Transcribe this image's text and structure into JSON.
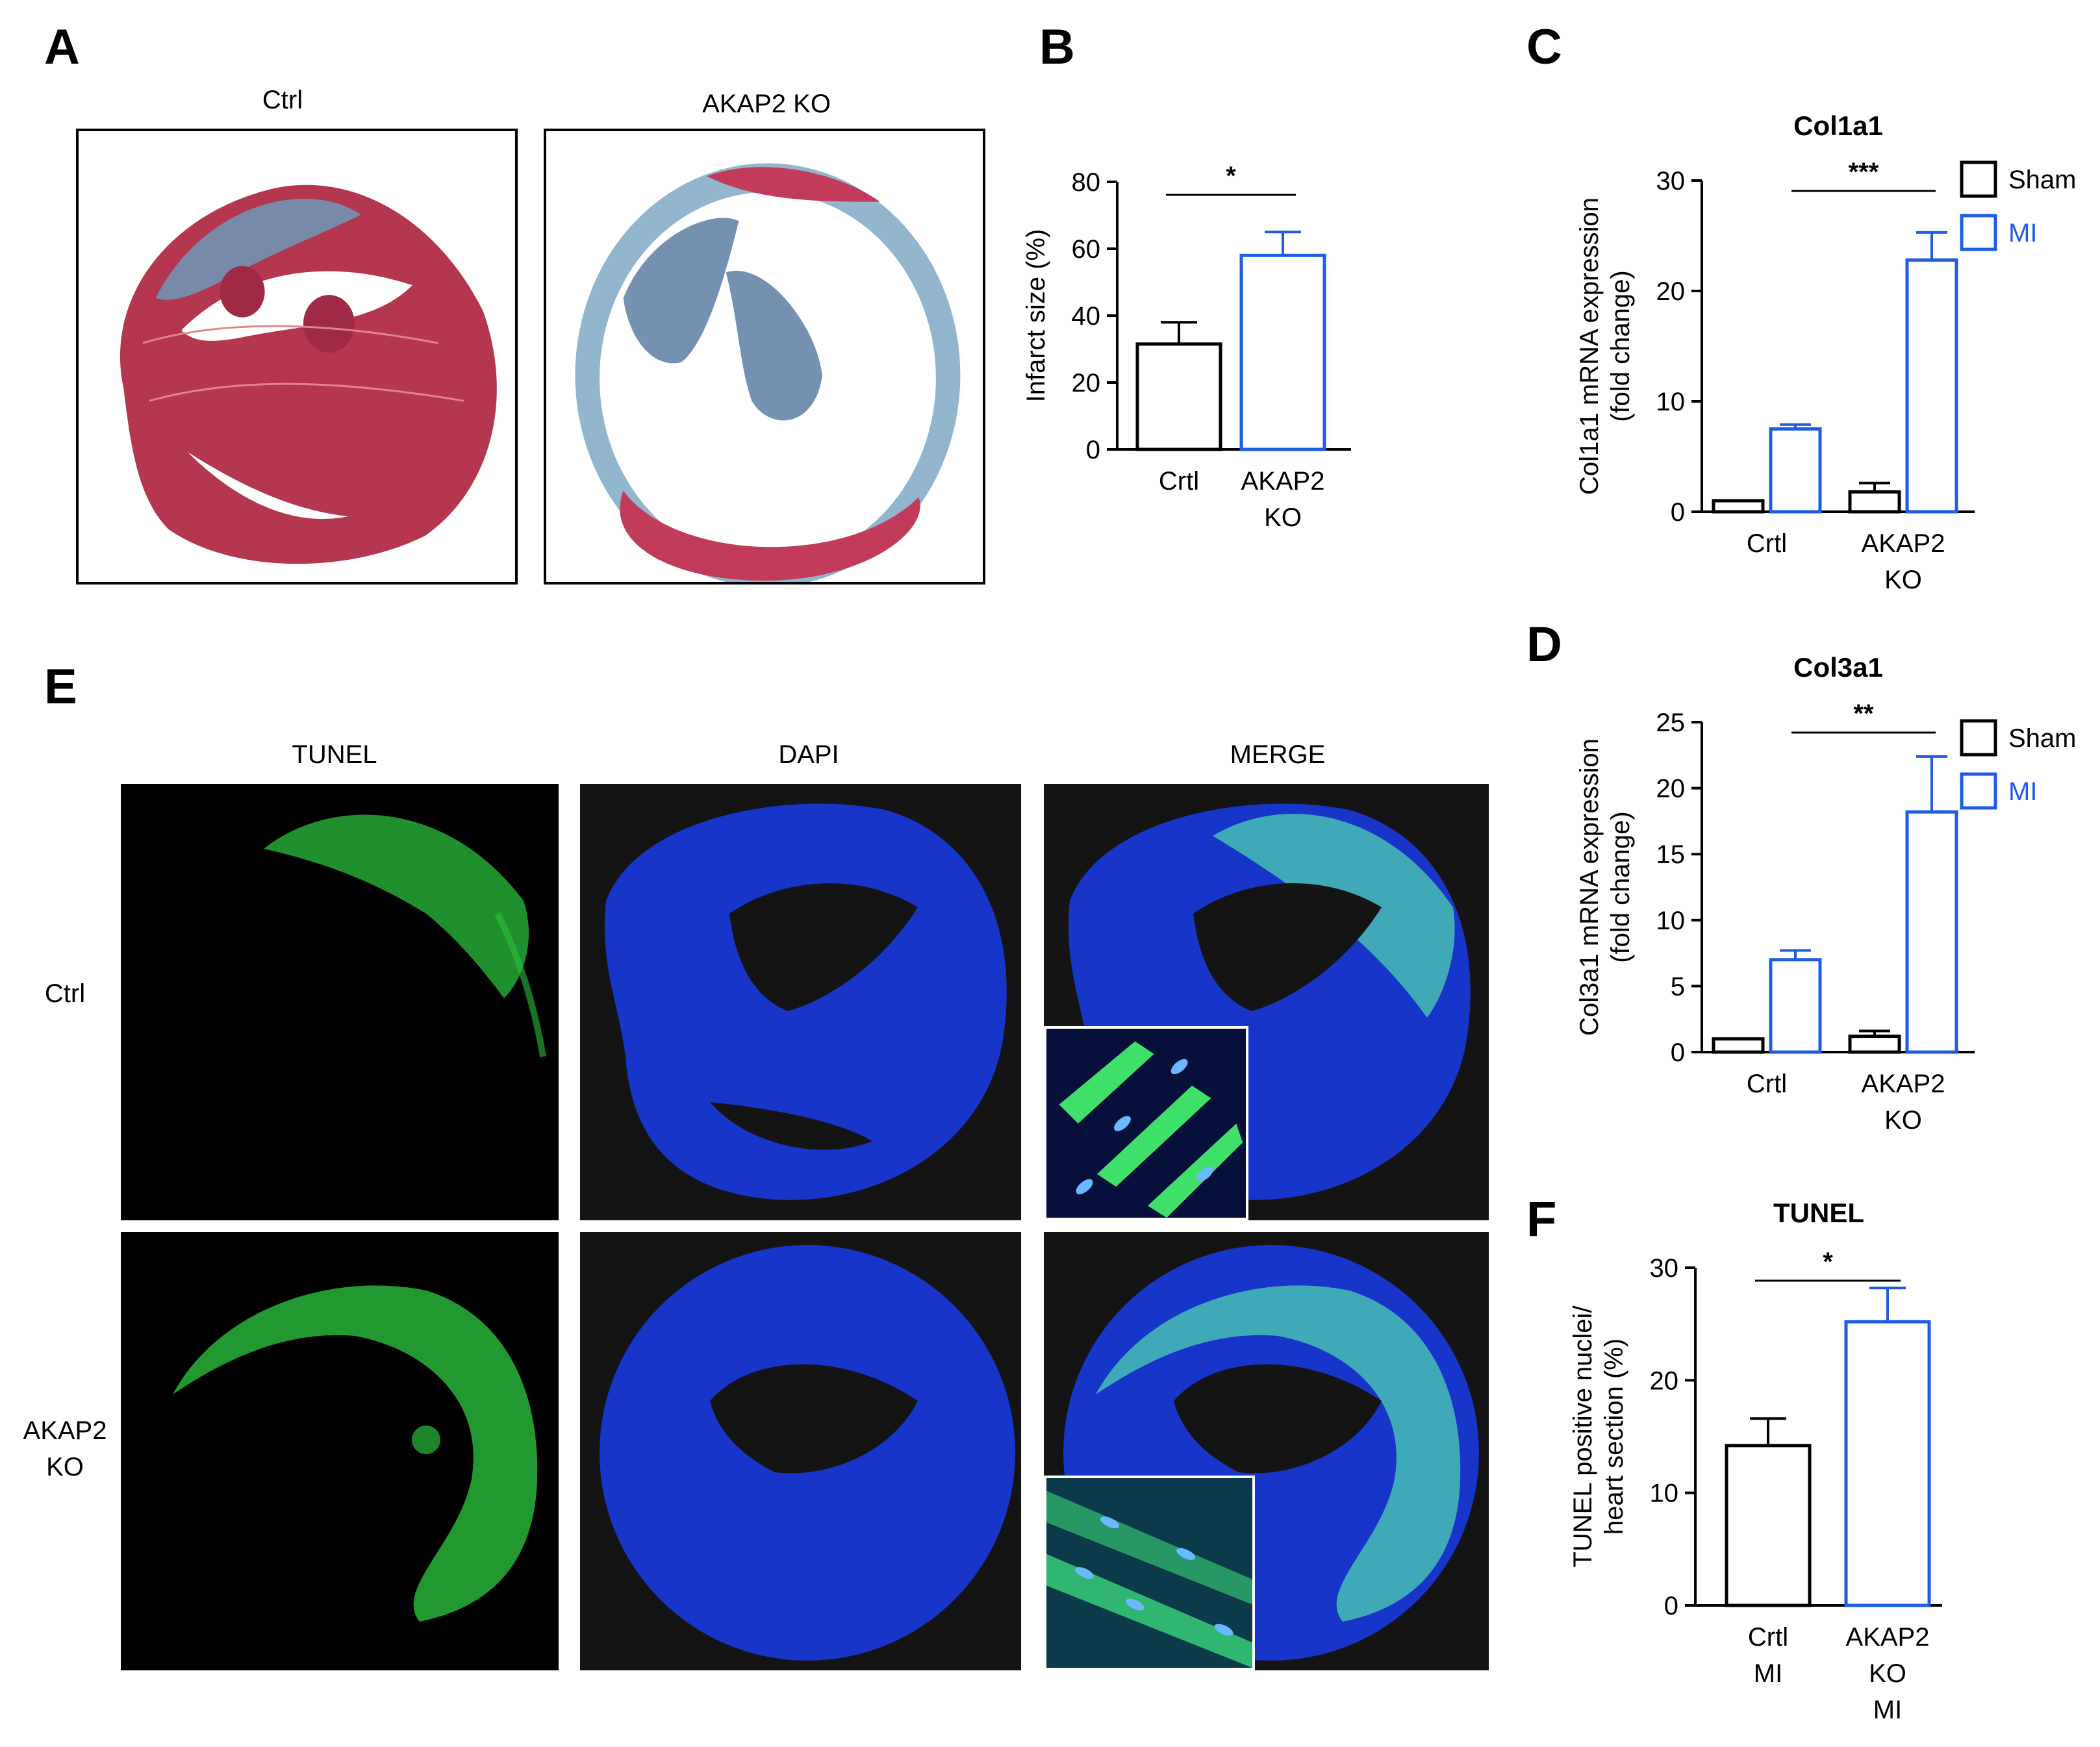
{
  "panels": {
    "A": "A",
    "B": "B",
    "C": "C",
    "D": "D",
    "E": "E",
    "F": "F"
  },
  "histology": {
    "ctrl_label": "Ctrl",
    "ko_label": "AKAP2 KO"
  },
  "fluorescence": {
    "columns": [
      "TUNEL",
      "DAPI",
      "MERGE"
    ],
    "rows": [
      "Ctrl",
      "AKAP2 KO"
    ],
    "colors": {
      "tunel": "#38d64a",
      "dapi": "#1a3ed8",
      "background": "#000000"
    }
  },
  "colors": {
    "ctrl": "#000000",
    "ko": "#1f5ce0",
    "mi": "#1f5ce0",
    "sham": "#000000"
  },
  "chart_data": [
    {
      "id": "B",
      "type": "bar",
      "title": "",
      "ylabel": "Infarct size (%)",
      "ylim": [
        0,
        80
      ],
      "yticks": [
        0,
        20,
        40,
        60,
        80
      ],
      "categories": [
        "Crtl",
        "AKAP2 KO"
      ],
      "category_lines": [
        [
          "Crtl"
        ],
        [
          "AKAP2",
          "KO"
        ]
      ],
      "values": [
        31.5,
        58
      ],
      "errors": [
        6.5,
        7
      ],
      "colors": [
        "#000000",
        "#1f5ce0"
      ],
      "significance": "*"
    },
    {
      "id": "C",
      "type": "bar",
      "title": "Col1a1",
      "ylabel": "Col1a1 mRNA expression (fold change)",
      "ylabel_lines": [
        "Col1a1 mRNA expression",
        "(fold change)"
      ],
      "ylim": [
        0,
        30
      ],
      "yticks": [
        0,
        10,
        20,
        30
      ],
      "categories": [
        "Crtl",
        "AKAP2 KO"
      ],
      "category_lines": [
        [
          "Crtl"
        ],
        [
          "AKAP2",
          "KO"
        ]
      ],
      "series": [
        {
          "name": "Sham",
          "values": [
            1,
            1.8
          ],
          "errors": [
            0,
            0.8
          ],
          "color": "#000000"
        },
        {
          "name": "MI",
          "values": [
            7.5,
            22.8
          ],
          "errors": [
            0.4,
            2.5
          ],
          "color": "#1f5ce0"
        }
      ],
      "significance": "***",
      "legend": "top-right"
    },
    {
      "id": "D",
      "type": "bar",
      "title": "Col3a1",
      "ylabel": "Col3a1 mRNA expression (fold change)",
      "ylabel_lines": [
        "Col3a1 mRNA expression",
        "(fold change)"
      ],
      "ylim": [
        0,
        25
      ],
      "yticks": [
        0,
        5,
        10,
        15,
        20,
        25
      ],
      "categories": [
        "Crtl",
        "AKAP2 KO"
      ],
      "category_lines": [
        [
          "Crtl"
        ],
        [
          "AKAP2",
          "KO"
        ]
      ],
      "series": [
        {
          "name": "Sham",
          "values": [
            1,
            1.2
          ],
          "errors": [
            0,
            0.4
          ],
          "color": "#000000"
        },
        {
          "name": "MI",
          "values": [
            7,
            18.2
          ],
          "errors": [
            0.7,
            4.2
          ],
          "color": "#1f5ce0"
        }
      ],
      "significance": "**",
      "legend": "top-right"
    },
    {
      "id": "F",
      "type": "bar",
      "title": "TUNEL",
      "ylabel": "TUNEL positive nuclei/ heart section (%)",
      "ylabel_lines": [
        "TUNEL positive nuclei/",
        "heart section (%)"
      ],
      "ylim": [
        0,
        30
      ],
      "yticks": [
        0,
        10,
        20,
        30
      ],
      "categories": [
        "Crtl MI",
        "AKAP2 KO MI"
      ],
      "category_lines": [
        [
          "Crtl",
          "MI"
        ],
        [
          "AKAP2",
          "KO",
          "MI"
        ]
      ],
      "values": [
        14.2,
        25.2
      ],
      "errors": [
        2.4,
        3
      ],
      "colors": [
        "#000000",
        "#1f5ce0"
      ],
      "significance": "*"
    }
  ]
}
